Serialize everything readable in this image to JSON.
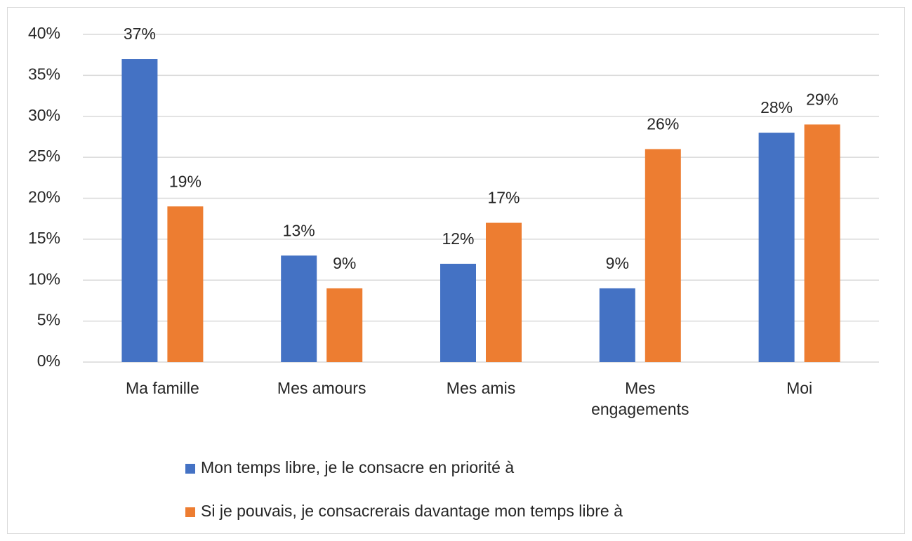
{
  "chart_data": {
    "type": "bar",
    "categories": [
      "Ma famille",
      "Mes amours",
      "Mes amis",
      "Mes engagements",
      "Moi"
    ],
    "series": [
      {
        "name": "Mon temps libre, je le consacre en priorité à",
        "color": "#4472c4",
        "values": [
          37,
          13,
          12,
          9,
          28
        ],
        "value_labels": [
          "37%",
          "13%",
          "12%",
          "9%",
          "28%"
        ]
      },
      {
        "name": "Si je pouvais, je consacrerais davantage mon temps libre à",
        "color": "#ed7d31",
        "values": [
          19,
          9,
          17,
          26,
          29
        ],
        "value_labels": [
          "19%",
          "9%",
          "17%",
          "26%",
          "29%"
        ]
      }
    ],
    "ylim": [
      0,
      40
    ],
    "yticks": [
      {
        "value": 0,
        "label": "0%"
      },
      {
        "value": 5,
        "label": "5%"
      },
      {
        "value": 10,
        "label": "10%"
      },
      {
        "value": 15,
        "label": "15%"
      },
      {
        "value": 20,
        "label": "20%"
      },
      {
        "value": 25,
        "label": "25%"
      },
      {
        "value": 30,
        "label": "30%"
      },
      {
        "value": 35,
        "label": "35%"
      },
      {
        "value": 40,
        "label": "40%"
      }
    ],
    "grid": true,
    "legend": "bottom"
  }
}
